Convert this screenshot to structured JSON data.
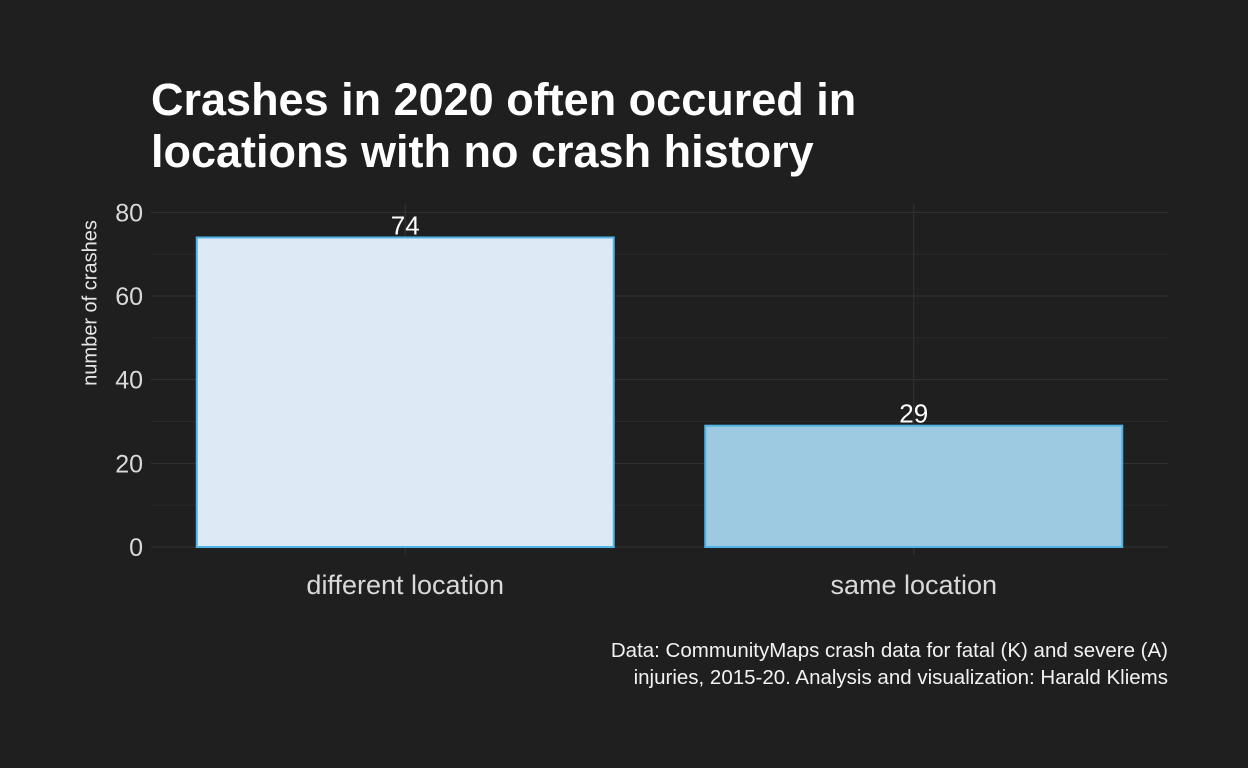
{
  "chart_data": {
    "type": "bar",
    "title_lines": [
      "Crashes in 2020 often occured in",
      "locations with no crash history"
    ],
    "xlabel": "",
    "ylabel": "number of crashes",
    "categories": [
      "different location",
      "same location"
    ],
    "values": [
      74,
      29
    ],
    "ylim": [
      0,
      80
    ],
    "yticks": [
      0,
      20,
      40,
      60,
      80
    ],
    "grid": true,
    "legend": "none",
    "bar_colors": [
      "#dde9f5",
      "#9ecae1"
    ],
    "bar_outline": "#4fb3e6",
    "caption_lines": [
      "Data: CommunityMaps crash data for fatal (K) and severe (A)",
      "injuries, 2015-20. Analysis and visualization: Harald Kliems"
    ]
  },
  "theme": {
    "background": "#1f1f1f",
    "grid_major": "#333333",
    "grid_minor": "#2a2a2a"
  }
}
